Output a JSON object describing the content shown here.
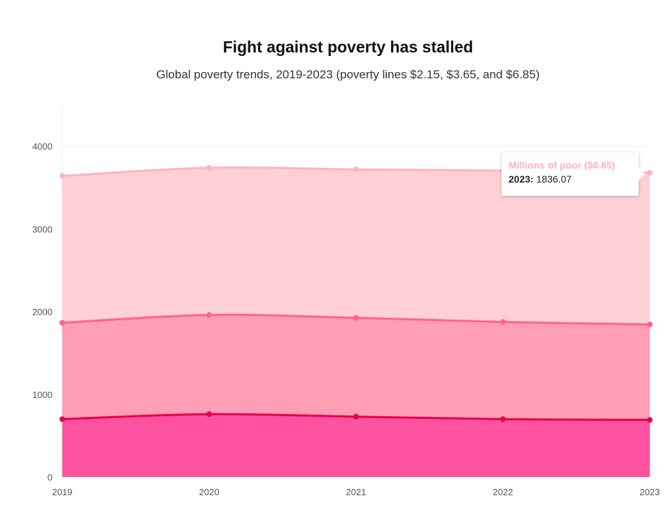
{
  "chart_data": {
    "type": "area",
    "title": "Fight against poverty has stalled",
    "subtitle": "Global poverty trends, 2019-2023 (poverty lines $2.15, $3.65, and $6.85)",
    "stacked": true,
    "x": [
      "2019",
      "2020",
      "2021",
      "2022",
      "2023"
    ],
    "ylim": [
      0,
      4500
    ],
    "yticks": [
      0,
      1000,
      2000,
      3000,
      4000
    ],
    "grid": true,
    "series": [
      {
        "name": "",
        "color": "#ff52a0",
        "line_color": "#e6004c",
        "values": [
          700,
          760,
          730,
          700,
          690
        ]
      },
      {
        "name": "",
        "color": "#ff9eb5",
        "line_color": "#ff6680",
        "values": [
          1165,
          1200,
          1195,
          1175,
          1155
        ]
      },
      {
        "name": "Millions of poor ($6.85)",
        "color": "#ffd0d6",
        "line_color": "#ffb3bd",
        "values": [
          1775,
          1780,
          1795,
          1830,
          1836.07
        ]
      }
    ],
    "tooltip": {
      "series_name": "Millions of poor ($6.85)",
      "year_label": "2023:",
      "value": "1836.07"
    }
  }
}
